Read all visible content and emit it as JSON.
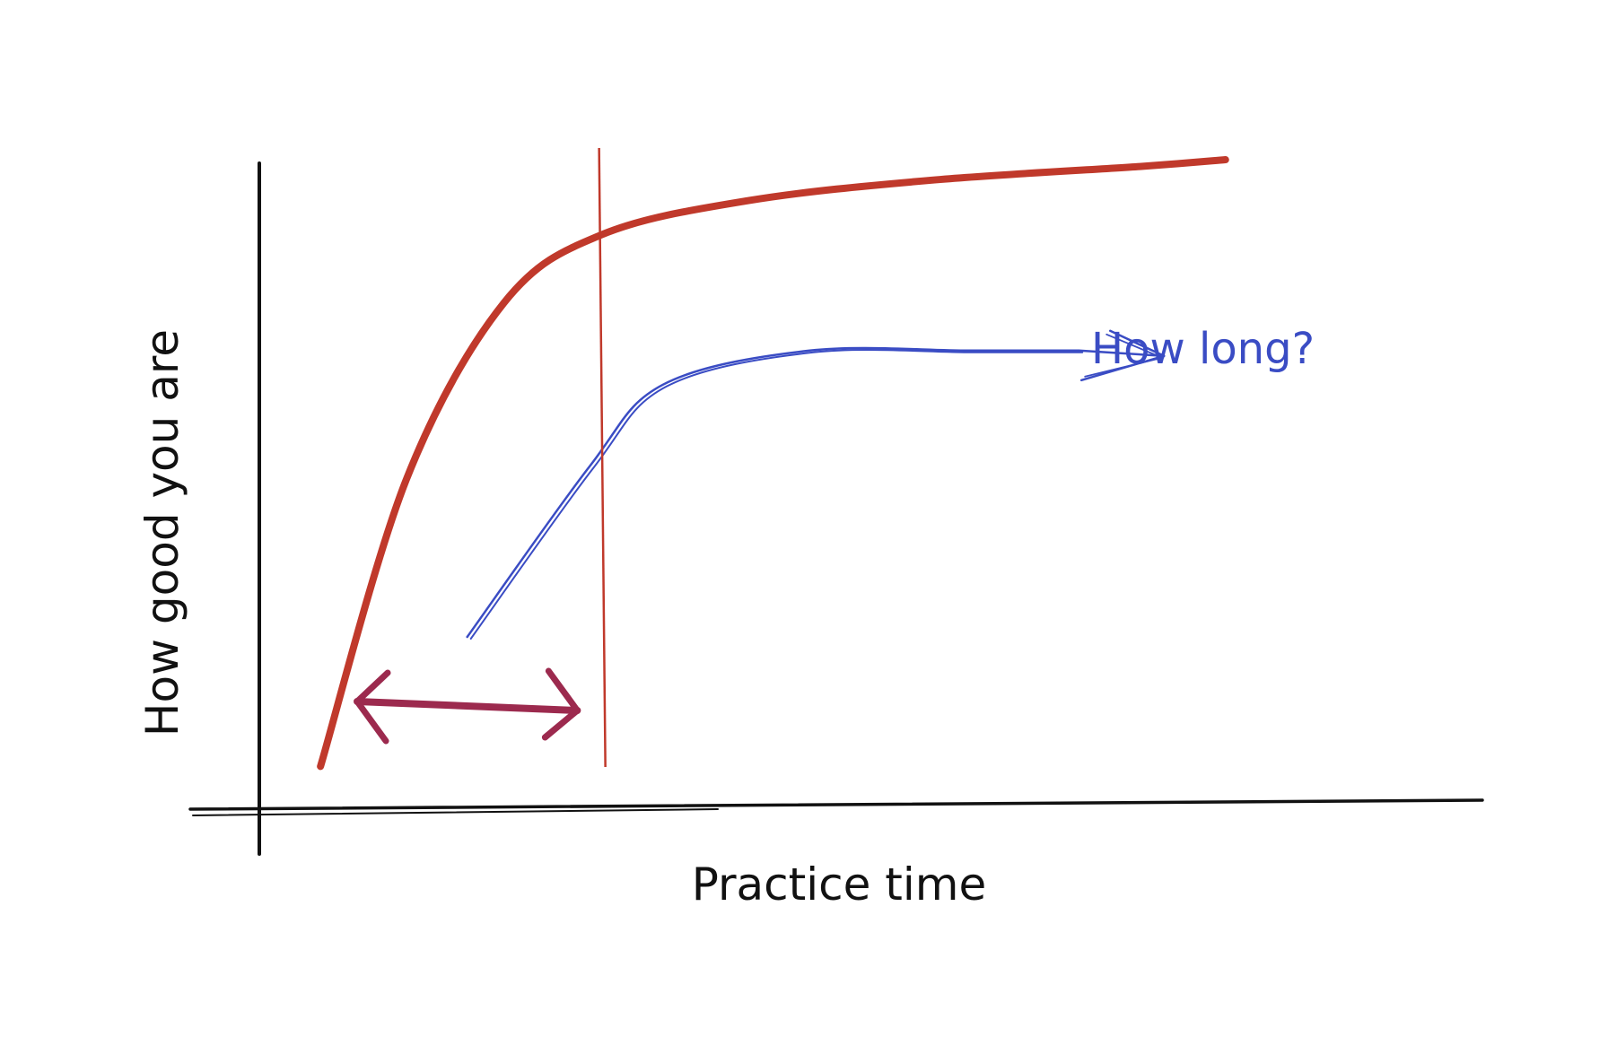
{
  "chart_data": {
    "type": "line",
    "title": "",
    "xlabel": "Practice time",
    "ylabel": "How good you are",
    "axes": {
      "ticks": false,
      "grid": false,
      "legend": "none"
    },
    "series": [
      {
        "color": "#c0392b",
        "style": "thick",
        "points": [
          [
            0.05,
            0.06
          ],
          [
            0.12,
            0.48
          ],
          [
            0.2,
            0.74
          ],
          [
            0.28,
            0.84
          ],
          [
            0.4,
            0.89
          ],
          [
            0.55,
            0.92
          ],
          [
            0.72,
            0.94
          ],
          [
            0.79,
            0.95
          ]
        ]
      },
      {
        "color": "#3a4cc4",
        "style": "double-thin",
        "points": [
          [
            0.17,
            0.25
          ],
          [
            0.27,
            0.5
          ],
          [
            0.33,
            0.62
          ],
          [
            0.45,
            0.67
          ],
          [
            0.58,
            0.67
          ],
          [
            0.67,
            0.67
          ]
        ]
      }
    ],
    "annotations": [
      {
        "kind": "vertical-line",
        "color": "#c0392b",
        "x": 0.28
      },
      {
        "kind": "double-arrow",
        "color": "#9c2a4e",
        "x_from": 0.08,
        "x_to": 0.26,
        "y": 0.15
      },
      {
        "kind": "arrowhead",
        "color": "#3a4cc4",
        "at": "end-of-blue-series"
      },
      {
        "kind": "text",
        "color": "#3a4cc4",
        "text": "How long?"
      }
    ]
  }
}
